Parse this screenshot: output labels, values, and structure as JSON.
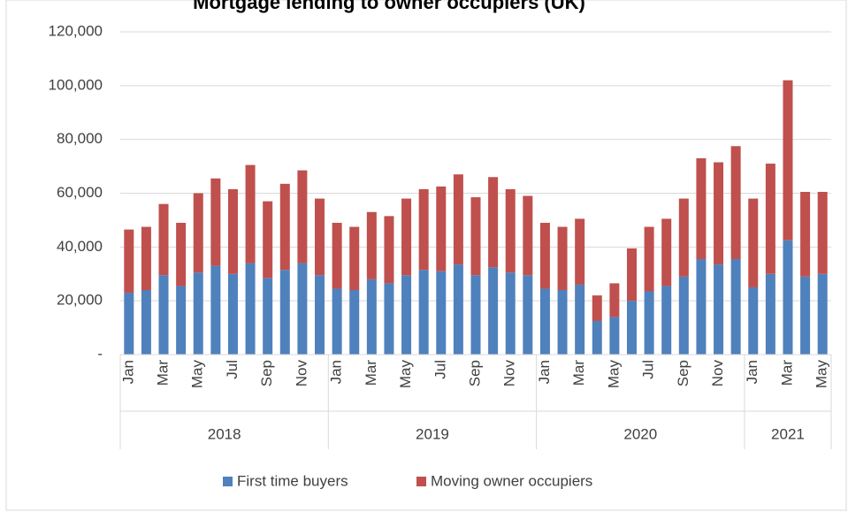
{
  "chart_data": {
    "type": "stacked_bar",
    "title": "Mortgage lending to owner occupiers (UK)",
    "categories": [
      "Jan",
      null,
      "Mar",
      null,
      "May",
      null,
      "Jul",
      null,
      "Sep",
      null,
      "Nov",
      null,
      "Jan",
      null,
      "Mar",
      null,
      "May",
      null,
      "Jul",
      null,
      "Sep",
      null,
      "Nov",
      null,
      "Jan",
      null,
      "Mar",
      null,
      "May",
      null,
      "Jul",
      null,
      "Sep",
      null,
      "Nov",
      null,
      "Jan",
      null,
      "Mar",
      null,
      "May"
    ],
    "groups": [
      "2018",
      "2019",
      "2020",
      "2021"
    ],
    "series": [
      {
        "name": "First time buyers",
        "color": "#4f81bd",
        "values": [
          23000,
          24000,
          29500,
          25500,
          30500,
          33000,
          30000,
          34000,
          28500,
          31500,
          34000,
          29500,
          24500,
          24000,
          28000,
          26500,
          29500,
          31500,
          31000,
          33500,
          29500,
          32500,
          30500,
          29500,
          24500,
          24000,
          26000,
          12500,
          14000,
          20000,
          23500,
          25500,
          29000,
          35500,
          33500,
          35500,
          25000,
          30000,
          42500,
          29000,
          30000
        ]
      },
      {
        "name": "Moving owner occupiers",
        "color": "#c0504d",
        "values": [
          23500,
          23500,
          26500,
          23500,
          29500,
          32500,
          31500,
          36500,
          28500,
          32000,
          34500,
          28500,
          24500,
          23500,
          25000,
          25000,
          28500,
          30000,
          31500,
          33500,
          29000,
          33500,
          31000,
          29500,
          24500,
          23500,
          24500,
          9500,
          12500,
          19500,
          24000,
          25000,
          29000,
          37500,
          38000,
          42000,
          33000,
          41000,
          59500,
          31500,
          30500
        ]
      }
    ],
    "ylim": [
      0,
      120000
    ],
    "yticks": [
      {
        "value": 0,
        "label": "-"
      },
      {
        "value": 20000,
        "label": "20,000"
      },
      {
        "value": 40000,
        "label": "40,000"
      },
      {
        "value": 60000,
        "label": "60,000"
      },
      {
        "value": 80000,
        "label": "80,000"
      },
      {
        "value": 100000,
        "label": "100,000"
      },
      {
        "value": 120000,
        "label": "120,000"
      }
    ],
    "grid": true,
    "legend": "bottom"
  }
}
